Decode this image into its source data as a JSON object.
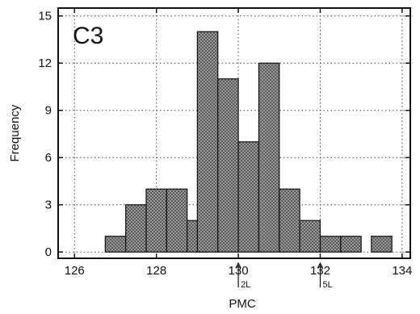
{
  "chart_data": {
    "type": "bar",
    "panel_label": "C3",
    "xlabel": "PMC",
    "ylabel": "Frequency",
    "xlim": [
      125.6,
      134.2
    ],
    "ylim": [
      -0.4,
      15.5
    ],
    "xticks": [
      126,
      128,
      130,
      132,
      134
    ],
    "yticks": [
      0,
      3,
      6,
      9,
      12,
      15
    ],
    "grid": true,
    "bin_width": 0.5,
    "bins": [
      {
        "x0": 126.75,
        "count": 1
      },
      {
        "x0": 127.25,
        "count": 3
      },
      {
        "x0": 127.75,
        "count": 4
      },
      {
        "x0": 128.25,
        "count": 4
      },
      {
        "x0": 128.75,
        "count": 2
      },
      {
        "x0": 129.0,
        "count": 14
      },
      {
        "x0": 129.5,
        "count": 11
      },
      {
        "x0": 130.0,
        "count": 7
      },
      {
        "x0": 130.5,
        "count": 12
      },
      {
        "x0": 131.0,
        "count": 4
      },
      {
        "x0": 131.5,
        "count": 2
      },
      {
        "x0": 132.0,
        "count": 1
      },
      {
        "x0": 132.5,
        "count": 1
      },
      {
        "x0": 133.25,
        "count": 1
      }
    ],
    "markers": [
      {
        "x": 130.0,
        "label": "2L"
      },
      {
        "x": 132.0,
        "label": "5L"
      }
    ],
    "colors": {
      "bar_fill": "#8c8c8c",
      "bar_stroke": "#111111",
      "grid": "#444444"
    }
  }
}
